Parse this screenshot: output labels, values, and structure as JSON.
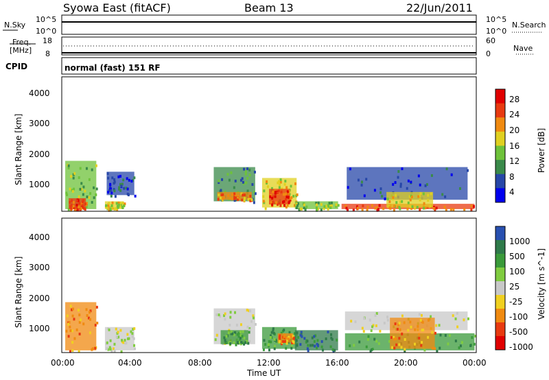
{
  "header": {
    "station": "Syowa East (fitACF)",
    "beam": "Beam 13",
    "date": "22/Jun/2011"
  },
  "noise_panel": {
    "left_label": "N.Sky",
    "left_ticks": [
      "10^5",
      "10^0"
    ],
    "right_label": "N.Search",
    "right_ticks": [
      "10^5",
      "10^0"
    ]
  },
  "freq_panel": {
    "left_label_line1": "Freq.",
    "left_label_line2": "[MHz]",
    "left_ticks": [
      "18",
      "8"
    ],
    "right_label": "Nave",
    "right_ticks": [
      "60",
      "0"
    ]
  },
  "cpid": {
    "label": "CPID",
    "mode": "normal (fast) 151 RF"
  },
  "chart_data": [
    {
      "type": "heatmap",
      "name": "power",
      "ylabel": "Slant Range [km]",
      "ylim": [
        180,
        4500
      ],
      "yticks": [
        "1000",
        "2000",
        "3000",
        "4000"
      ],
      "xlim": [
        "00:00",
        "24:00"
      ],
      "colorbar_label": "Power [dB]",
      "colorbar_ticks": [
        "4",
        "8",
        "12",
        "16",
        "20",
        "24",
        "28"
      ],
      "colors": [
        "#0000ee",
        "#2747a8",
        "#3a8a4a",
        "#6ec23a",
        "#e0d020",
        "#f08a10",
        "#e83a10",
        "#e00000"
      ],
      "echo_regions": [
        {
          "t0": 0.2,
          "t1": 2.0,
          "r0": 250,
          "r1": 1800,
          "val": 3
        },
        {
          "t0": 0.4,
          "t1": 1.4,
          "r0": 250,
          "r1": 600,
          "val": 6
        },
        {
          "t0": 2.5,
          "t1": 3.6,
          "r0": 250,
          "r1": 500,
          "val": 4
        },
        {
          "t0": 2.6,
          "t1": 4.2,
          "r0": 700,
          "r1": 1450,
          "val": 1
        },
        {
          "t0": 8.8,
          "t1": 11.2,
          "r0": 500,
          "r1": 1600,
          "val": 2
        },
        {
          "t0": 9.0,
          "t1": 11.0,
          "r0": 550,
          "r1": 800,
          "val": 5
        },
        {
          "t0": 11.6,
          "t1": 13.6,
          "r0": 300,
          "r1": 1250,
          "val": 4
        },
        {
          "t0": 12.0,
          "t1": 13.2,
          "r0": 400,
          "r1": 900,
          "val": 6
        },
        {
          "t0": 13.5,
          "t1": 16.0,
          "r0": 250,
          "r1": 500,
          "val": 3
        },
        {
          "t0": 16.2,
          "t1": 23.9,
          "r0": 250,
          "r1": 420,
          "val": 6
        },
        {
          "t0": 16.5,
          "t1": 23.5,
          "r0": 550,
          "r1": 1600,
          "val": 1
        },
        {
          "t0": 18.8,
          "t1": 21.5,
          "r0": 300,
          "r1": 800,
          "val": 4
        }
      ]
    },
    {
      "type": "heatmap",
      "name": "velocity",
      "ylabel": "Slant Range [km]",
      "ylim": [
        180,
        4500
      ],
      "yticks": [
        "1000",
        "2000",
        "3000",
        "4000"
      ],
      "xlim": [
        "00:00",
        "24:00"
      ],
      "xticks": [
        "00:00",
        "04:00",
        "08:00",
        "12:00",
        "16:00",
        "20:00",
        "00:00"
      ],
      "xlabel": "Time UT",
      "colorbar_label": "Velocity [m s^-1]",
      "colorbar_ticks": [
        "1000",
        "500",
        "100",
        "25",
        "-25",
        "-100",
        "-500",
        "-1000"
      ],
      "colors": [
        "#2850b0",
        "#2f7a4a",
        "#3a9a3a",
        "#80cc40",
        "#c8c8c8",
        "#f0d020",
        "#f08a10",
        "#e83a10",
        "#e00000"
      ],
      "echo_regions": [
        {
          "t0": 0.2,
          "t1": 2.0,
          "r0": 250,
          "r1": 1800,
          "val": 6
        },
        {
          "t0": 2.5,
          "t1": 4.2,
          "r0": 250,
          "r1": 1000,
          "val": 4
        },
        {
          "t0": 8.8,
          "t1": 11.2,
          "r0": 450,
          "r1": 1600,
          "val": 4
        },
        {
          "t0": 9.2,
          "t1": 10.8,
          "r0": 450,
          "r1": 900,
          "val": 2
        },
        {
          "t0": 11.6,
          "t1": 13.6,
          "r0": 300,
          "r1": 1000,
          "val": 2
        },
        {
          "t0": 12.5,
          "t1": 13.4,
          "r0": 500,
          "r1": 800,
          "val": 6
        },
        {
          "t0": 13.5,
          "t1": 16.0,
          "r0": 250,
          "r1": 900,
          "val": 1
        },
        {
          "t0": 16.4,
          "t1": 23.5,
          "r0": 900,
          "r1": 1500,
          "val": 4
        },
        {
          "t0": 16.4,
          "t1": 23.9,
          "r0": 250,
          "r1": 800,
          "val": 2
        },
        {
          "t0": 19.0,
          "t1": 21.6,
          "r0": 300,
          "r1": 1300,
          "val": 6
        }
      ]
    }
  ]
}
